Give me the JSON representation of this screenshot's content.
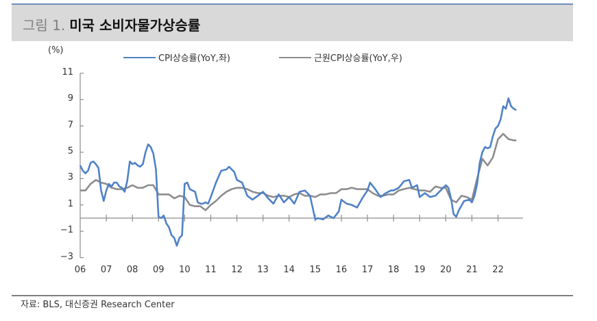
{
  "header": {
    "figure_label": "그림 1.",
    "title": "미국 소비자물가상승률"
  },
  "axis": {
    "unit_label": "(%)",
    "y_ticks": [
      "11",
      "9",
      "7",
      "5",
      "3",
      "1",
      "−1",
      "−3"
    ],
    "x_ticks": [
      "06",
      "07",
      "08",
      "09",
      "10",
      "11",
      "12",
      "13",
      "14",
      "15",
      "16",
      "17",
      "18",
      "19",
      "20",
      "21",
      "22"
    ]
  },
  "legend": {
    "series1_label": "CPI상승률(YoY,좌)",
    "series2_label": "근원CPI상승률(YoY,우)"
  },
  "colors": {
    "cpi": "#4f81c7",
    "core_cpi": "#8c8c8c",
    "title_bg": "#d9d9d9",
    "title_border": "#6f8fbd"
  },
  "source": "자료: BLS, 대신증권 Research Center",
  "chart_data": {
    "type": "line",
    "title": "미국 소비자물가상승률",
    "xlabel": "",
    "ylabel": "(%)",
    "ylim": [
      -3,
      11
    ],
    "y_ticks": [
      11,
      9,
      7,
      5,
      3,
      1,
      -1,
      -3
    ],
    "x_tick_labels": [
      "06",
      "07",
      "08",
      "09",
      "10",
      "11",
      "12",
      "13",
      "14",
      "15",
      "16",
      "17",
      "18",
      "19",
      "20",
      "21",
      "22"
    ],
    "grid": false,
    "legend_position": "top",
    "series": [
      {
        "name": "CPI상승률(YoY,좌)",
        "color": "#4f81c7",
        "x": [
          2006.0,
          2006.1,
          2006.2,
          2006.3,
          2006.4,
          2006.5,
          2006.6,
          2006.7,
          2006.8,
          2006.9,
          2007.0,
          2007.1,
          2007.2,
          2007.3,
          2007.4,
          2007.5,
          2007.6,
          2007.7,
          2007.8,
          2007.9,
          2008.0,
          2008.1,
          2008.2,
          2008.3,
          2008.4,
          2008.5,
          2008.6,
          2008.7,
          2008.8,
          2008.9,
          2009.0,
          2009.1,
          2009.2,
          2009.3,
          2009.4,
          2009.5,
          2009.6,
          2009.7,
          2009.8,
          2009.9,
          2010.0,
          2010.1,
          2010.2,
          2010.3,
          2010.4,
          2010.5,
          2010.6,
          2010.7,
          2010.8,
          2010.9,
          2011.0,
          2011.2,
          2011.4,
          2011.6,
          2011.7,
          2011.9,
          2012.0,
          2012.2,
          2012.4,
          2012.6,
          2012.8,
          2013.0,
          2013.2,
          2013.4,
          2013.6,
          2013.8,
          2014.0,
          2014.2,
          2014.4,
          2014.6,
          2014.8,
          2015.0,
          2015.1,
          2015.3,
          2015.5,
          2015.7,
          2015.9,
          2016.0,
          2016.2,
          2016.4,
          2016.6,
          2016.8,
          2017.0,
          2017.1,
          2017.3,
          2017.5,
          2017.7,
          2017.9,
          2018.0,
          2018.2,
          2018.4,
          2018.6,
          2018.7,
          2018.9,
          2019.0,
          2019.2,
          2019.4,
          2019.6,
          2019.8,
          2020.0,
          2020.1,
          2020.2,
          2020.3,
          2020.4,
          2020.5,
          2020.7,
          2020.9,
          2021.0,
          2021.1,
          2021.2,
          2021.3,
          2021.4,
          2021.5,
          2021.6,
          2021.7,
          2021.8,
          2021.9,
          2022.0,
          2022.1,
          2022.2,
          2022.3,
          2022.4,
          2022.5,
          2022.6,
          2022.7
        ],
        "values": [
          4.0,
          3.6,
          3.4,
          3.6,
          4.2,
          4.3,
          4.1,
          3.8,
          2.1,
          1.3,
          2.1,
          2.6,
          2.4,
          2.7,
          2.7,
          2.4,
          2.3,
          2.0,
          2.8,
          4.3,
          4.1,
          4.2,
          4.0,
          3.9,
          4.1,
          5.0,
          5.6,
          5.4,
          4.9,
          3.7,
          0.1,
          0.0,
          0.2,
          -0.4,
          -0.7,
          -1.3,
          -1.5,
          -2.1,
          -1.5,
          -1.3,
          2.6,
          2.7,
          2.2,
          2.1,
          2.0,
          1.2,
          1.1,
          1.1,
          1.2,
          1.1,
          1.6,
          2.7,
          3.6,
          3.7,
          3.9,
          3.5,
          2.9,
          2.7,
          1.7,
          1.4,
          1.7,
          2.0,
          1.5,
          1.1,
          1.8,
          1.2,
          1.6,
          1.1,
          2.0,
          2.1,
          1.7,
          -0.1,
          0.0,
          -0.1,
          0.2,
          0.0,
          0.5,
          1.4,
          1.1,
          1.0,
          0.8,
          1.5,
          2.1,
          2.7,
          2.2,
          1.6,
          1.9,
          2.1,
          2.1,
          2.3,
          2.8,
          2.9,
          2.3,
          2.5,
          1.6,
          1.9,
          1.6,
          1.7,
          2.1,
          2.5,
          2.3,
          1.5,
          0.3,
          0.1,
          0.6,
          1.3,
          1.4,
          1.2,
          1.7,
          2.6,
          4.2,
          5.0,
          5.4,
          5.3,
          5.4,
          6.2,
          6.8,
          7.0,
          7.5,
          8.5,
          8.3,
          9.1,
          8.5,
          8.3,
          8.2
        ],
        "note": "Approximate values read from chart; final point ~8.5"
      },
      {
        "name": "근원CPI상승률(YoY,우)",
        "color": "#8c8c8c",
        "x": [
          2006.0,
          2006.2,
          2006.4,
          2006.6,
          2006.8,
          2007.0,
          2007.2,
          2007.4,
          2007.6,
          2007.8,
          2008.0,
          2008.2,
          2008.4,
          2008.6,
          2008.8,
          2009.0,
          2009.2,
          2009.4,
          2009.6,
          2009.8,
          2010.0,
          2010.2,
          2010.4,
          2010.6,
          2010.8,
          2011.0,
          2011.2,
          2011.4,
          2011.6,
          2011.8,
          2012.0,
          2012.2,
          2012.4,
          2012.6,
          2012.8,
          2013.0,
          2013.2,
          2013.4,
          2013.6,
          2013.8,
          2014.0,
          2014.2,
          2014.4,
          2014.6,
          2014.8,
          2015.0,
          2015.2,
          2015.4,
          2015.6,
          2015.8,
          2016.0,
          2016.2,
          2016.4,
          2016.6,
          2016.8,
          2017.0,
          2017.2,
          2017.4,
          2017.6,
          2017.8,
          2018.0,
          2018.2,
          2018.4,
          2018.6,
          2018.8,
          2019.0,
          2019.2,
          2019.4,
          2019.6,
          2019.8,
          2020.0,
          2020.2,
          2020.4,
          2020.6,
          2020.8,
          2021.0,
          2021.2,
          2021.4,
          2021.6,
          2021.8,
          2022.0,
          2022.2,
          2022.4,
          2022.6,
          2022.7
        ],
        "values": [
          2.1,
          2.1,
          2.6,
          2.9,
          2.7,
          2.6,
          2.3,
          2.2,
          2.2,
          2.3,
          2.5,
          2.3,
          2.3,
          2.5,
          2.5,
          1.8,
          1.8,
          1.8,
          1.5,
          1.7,
          1.6,
          1.0,
          0.9,
          0.9,
          0.6,
          1.0,
          1.3,
          1.7,
          2.0,
          2.2,
          2.3,
          2.3,
          2.2,
          2.0,
          1.9,
          1.9,
          1.7,
          1.6,
          1.7,
          1.7,
          1.6,
          1.8,
          1.9,
          1.7,
          1.7,
          1.6,
          1.8,
          1.8,
          1.9,
          1.9,
          2.2,
          2.2,
          2.3,
          2.2,
          2.2,
          2.2,
          1.9,
          1.7,
          1.7,
          1.8,
          1.8,
          2.1,
          2.2,
          2.3,
          2.2,
          2.1,
          2.1,
          2.0,
          2.4,
          2.3,
          2.3,
          1.4,
          1.2,
          1.7,
          1.6,
          1.4,
          3.0,
          4.5,
          4.0,
          4.6,
          6.0,
          6.4,
          6.0,
          5.9,
          5.9
        ],
        "note": "Approximate values read from chart; plotted on same visual scale"
      }
    ]
  }
}
